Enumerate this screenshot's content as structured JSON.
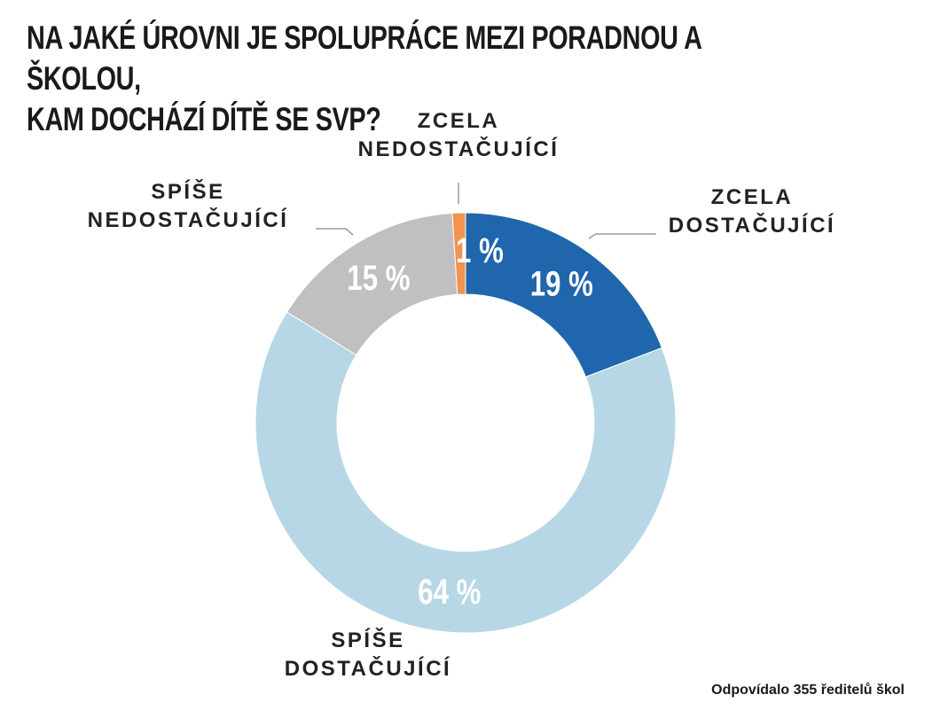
{
  "title": {
    "line1": "NA JAKÉ ÚROVNI JE SPOLUPRÁCE MEZI PORADNOU A ŠKOLOU,",
    "line2": "KAM DOCHÁZÍ DÍTĚ SE SVP?"
  },
  "footnote": "Odpovídalo 355 ředitelů škol",
  "chart_data": {
    "type": "pie",
    "subtype": "donut",
    "title": "NA JAKÉ ÚROVNI JE SPOLUPRÁCE MEZI PORADNOU A ŠKOLOU, KAM DOCHÁZÍ DÍTĚ SE SVP?",
    "unit": "%",
    "slices": [
      {
        "label_lines": [
          "ZCELA",
          "DOSTAČUJÍCÍ"
        ],
        "value": 19,
        "value_label": "19 %",
        "color": "#1f66ad"
      },
      {
        "label_lines": [
          "SPÍŠE",
          "DOSTAČUJÍCÍ"
        ],
        "value": 64,
        "value_label": "64 %",
        "color": "#b7d7e6"
      },
      {
        "label_lines": [
          "SPÍŠE",
          "NEDOSTAČUJÍCÍ"
        ],
        "value": 15,
        "value_label": "15 %",
        "color": "#c0c0c0"
      },
      {
        "label_lines": [
          "ZCELA",
          "NEDOSTAČUJÍCÍ"
        ],
        "value": 1,
        "value_label": "1 %",
        "color": "#f0944f"
      }
    ]
  }
}
